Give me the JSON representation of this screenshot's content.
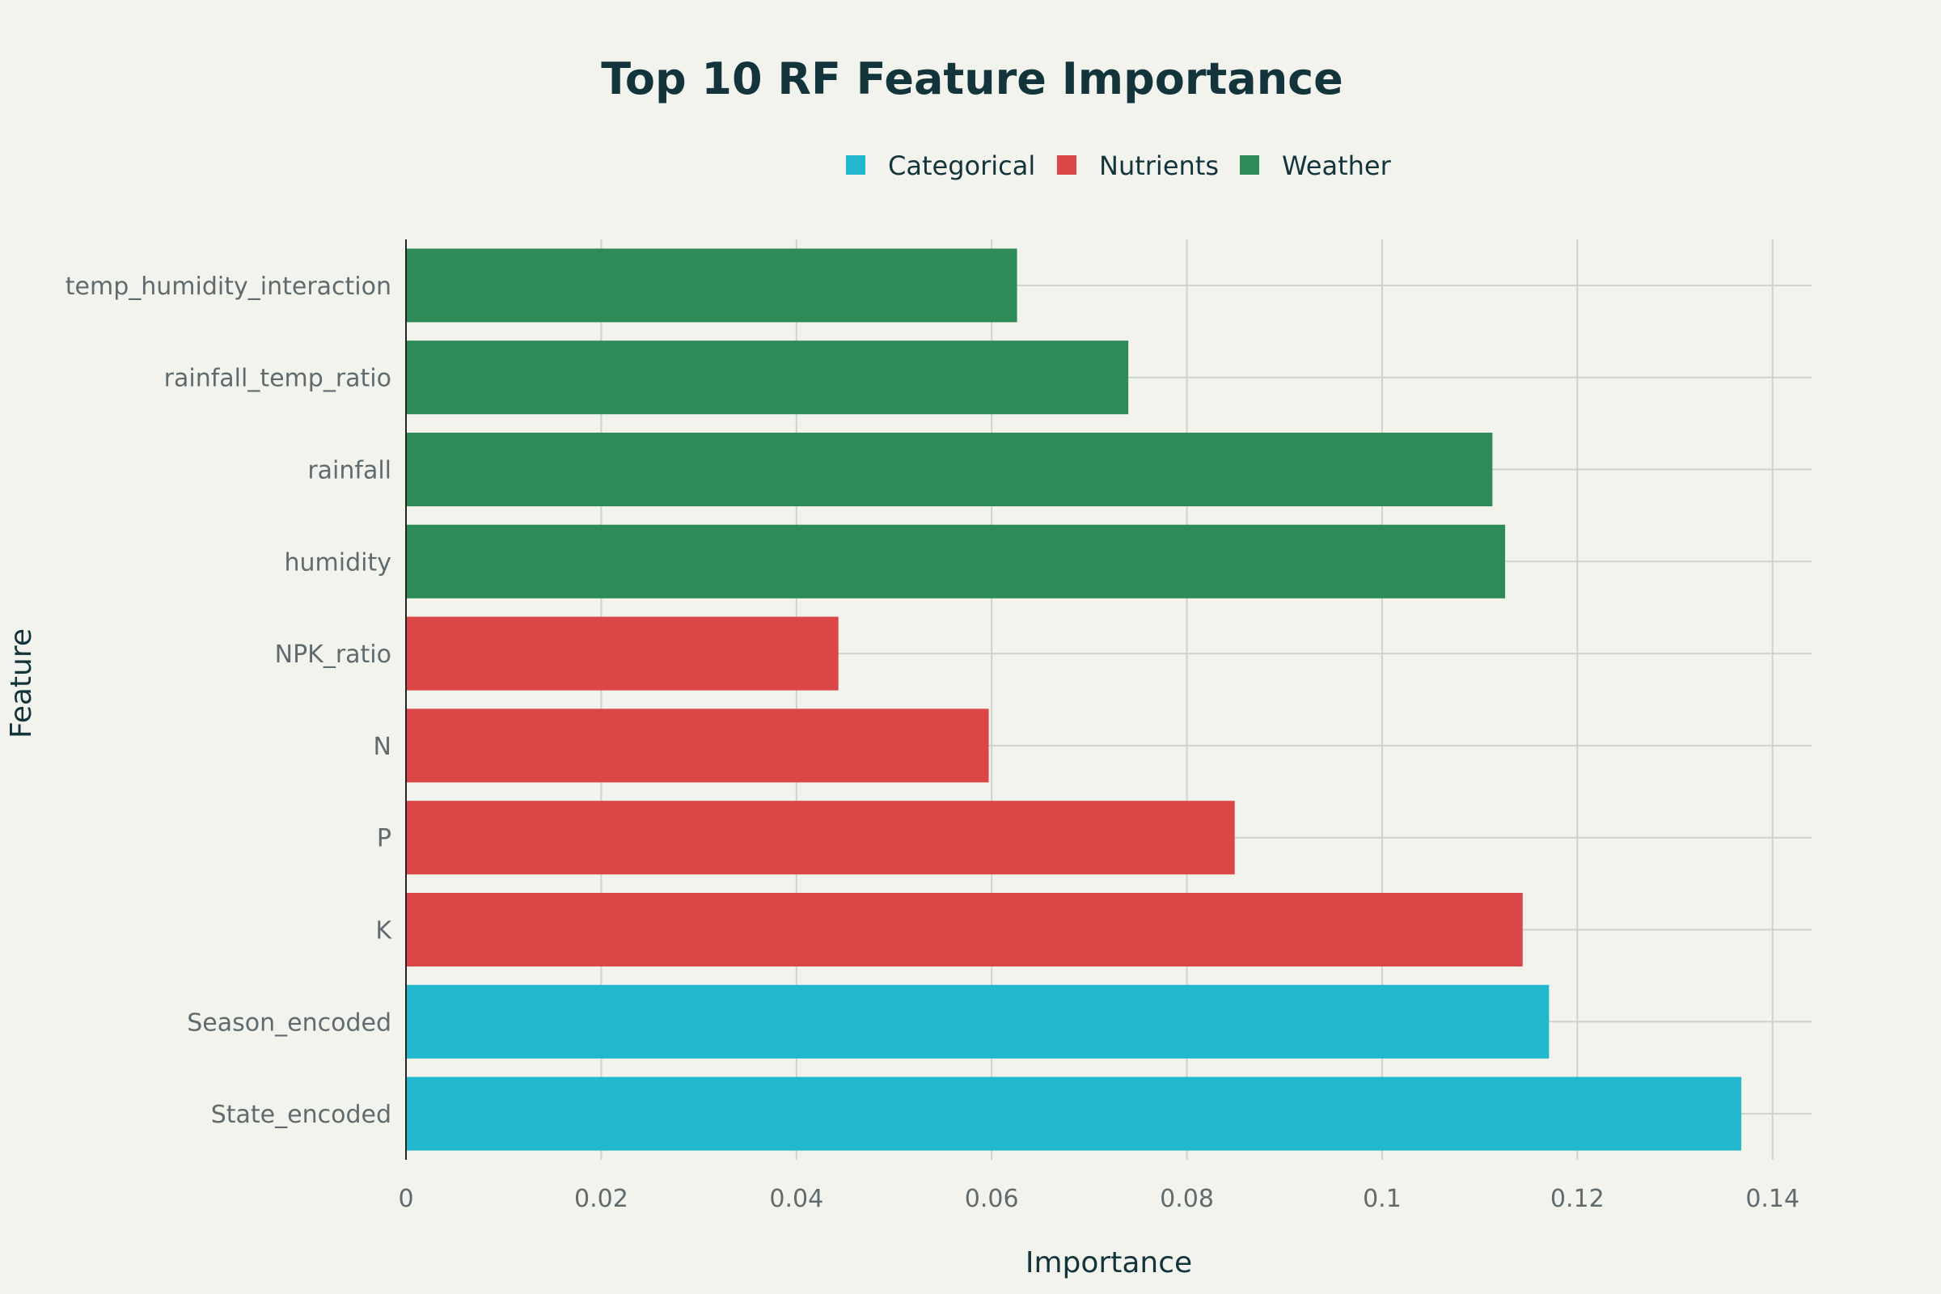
{
  "chart_data": {
    "type": "bar",
    "orientation": "horizontal",
    "title": "Top 10 RF Feature Importance",
    "xlabel": "Importance",
    "ylabel": "Feature",
    "xlim": [
      0,
      0.144
    ],
    "x_ticks": [
      0,
      0.02,
      0.04,
      0.06,
      0.08,
      0.1,
      0.12,
      0.14
    ],
    "x_tick_labels": [
      "0",
      "0.02",
      "0.04",
      "0.06",
      "0.08",
      "0.1",
      "0.12",
      "0.14"
    ],
    "grid": true,
    "legend_position": "top-center",
    "legend": [
      {
        "name": "Categorical",
        "color": "#21b8cd"
      },
      {
        "name": "Nutrients",
        "color": "#db4647"
      },
      {
        "name": "Weather",
        "color": "#2e8b57"
      }
    ],
    "categories": [
      "temp_humidity_interaction",
      "rainfall_temp_ratio",
      "rainfall",
      "humidity",
      "NPK_ratio",
      "N",
      "P",
      "K",
      "Season_encoded",
      "State_encoded"
    ],
    "values": [
      0.0626,
      0.074,
      0.1113,
      0.1126,
      0.0443,
      0.0597,
      0.0849,
      0.1144,
      0.1171,
      0.1368
    ],
    "groups": [
      "Weather",
      "Weather",
      "Weather",
      "Weather",
      "Nutrients",
      "Nutrients",
      "Nutrients",
      "Nutrients",
      "Categorical",
      "Categorical"
    ]
  }
}
